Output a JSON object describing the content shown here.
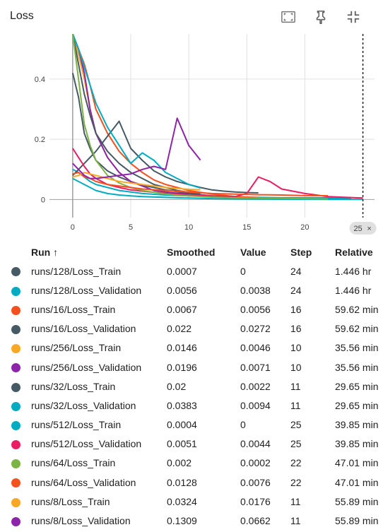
{
  "card": {
    "title": "Loss"
  },
  "toolbar": {
    "icons": [
      "fit-domain-icon",
      "pin-icon",
      "collapse-icon"
    ]
  },
  "chart_data": {
    "type": "line",
    "title": "Loss",
    "xlim": [
      -2,
      26
    ],
    "ylim": [
      -0.06,
      0.55
    ],
    "xticks": [
      0,
      5,
      10,
      15,
      20
    ],
    "yticks": [
      0,
      0.2,
      0.4
    ],
    "cursor_step": 25,
    "cursor_label": "25",
    "series": [
      {
        "name": "runs/128/Loss_Train",
        "color": "#455a64",
        "x": [
          0,
          0.5,
          1,
          1.5,
          2,
          3,
          4,
          5,
          6,
          8,
          10,
          12,
          14,
          16,
          18,
          20,
          22,
          24
        ],
        "y": [
          0.42,
          0.34,
          0.22,
          0.17,
          0.13,
          0.095,
          0.075,
          0.06,
          0.048,
          0.032,
          0.02,
          0.012,
          0.008,
          0.006,
          0.004,
          0.003,
          0.002,
          0.0007
        ]
      },
      {
        "name": "runs/128/Loss_Validation",
        "color": "#00acc1",
        "x": [
          0,
          0.5,
          1,
          1.5,
          2,
          3,
          4,
          5,
          6,
          8,
          10,
          12,
          14,
          16,
          18,
          20,
          22,
          24
        ],
        "y": [
          0.1,
          0.09,
          0.075,
          0.06,
          0.05,
          0.04,
          0.03,
          0.025,
          0.02,
          0.015,
          0.012,
          0.01,
          0.008,
          0.007,
          0.006,
          0.006,
          0.006,
          0.0056
        ]
      },
      {
        "name": "runs/16/Loss_Train",
        "color": "#f4511e",
        "x": [
          0,
          0.5,
          1,
          1.5,
          2,
          3,
          4,
          5,
          6,
          7,
          8,
          9,
          10,
          12,
          14,
          16
        ],
        "y": [
          0.55,
          0.5,
          0.45,
          0.38,
          0.3,
          0.22,
          0.16,
          0.12,
          0.09,
          0.065,
          0.05,
          0.04,
          0.03,
          0.018,
          0.01,
          0.0067
        ]
      },
      {
        "name": "runs/16/Loss_Validation",
        "color": "#455a64",
        "x": [
          0,
          1,
          2,
          3,
          4,
          5,
          6,
          7,
          8,
          9,
          10,
          11,
          12,
          13,
          14,
          15,
          16
        ],
        "y": [
          0.08,
          0.12,
          0.16,
          0.21,
          0.26,
          0.17,
          0.13,
          0.095,
          0.075,
          0.06,
          0.05,
          0.04,
          0.032,
          0.028,
          0.025,
          0.023,
          0.022
        ]
      },
      {
        "name": "runs/256/Loss_Train",
        "color": "#f9a825",
        "x": [
          0,
          0.5,
          1,
          1.5,
          2,
          3,
          4,
          5,
          6,
          7,
          8,
          9,
          10
        ],
        "y": [
          0.55,
          0.48,
          0.4,
          0.3,
          0.22,
          0.14,
          0.09,
          0.06,
          0.045,
          0.03,
          0.022,
          0.018,
          0.0146
        ]
      },
      {
        "name": "runs/256/Loss_Validation",
        "color": "#8e24aa",
        "x": [
          0,
          0.5,
          1,
          1.5,
          2,
          3,
          4,
          5,
          6,
          7,
          8,
          9,
          10
        ],
        "y": [
          0.55,
          0.5,
          0.42,
          0.3,
          0.22,
          0.14,
          0.09,
          0.06,
          0.045,
          0.03,
          0.025,
          0.021,
          0.0196
        ]
      },
      {
        "name": "runs/32/Loss_Train",
        "color": "#455a64",
        "x": [
          0,
          0.5,
          1,
          1.5,
          2,
          3,
          4,
          5,
          6,
          7,
          8,
          9,
          10,
          11
        ],
        "y": [
          0.55,
          0.45,
          0.35,
          0.28,
          0.22,
          0.16,
          0.12,
          0.09,
          0.07,
          0.05,
          0.04,
          0.03,
          0.024,
          0.02
        ]
      },
      {
        "name": "runs/32/Loss_Validation",
        "color": "#00acc1",
        "x": [
          0,
          0.5,
          1,
          1.5,
          2,
          3,
          4,
          5,
          6,
          7,
          8,
          9,
          10,
          11
        ],
        "y": [
          0.55,
          0.5,
          0.44,
          0.38,
          0.32,
          0.24,
          0.18,
          0.12,
          0.155,
          0.13,
          0.09,
          0.07,
          0.05,
          0.0383
        ]
      },
      {
        "name": "runs/512/Loss_Train",
        "color": "#00acc1",
        "x": [
          0,
          0.5,
          1,
          1.5,
          2,
          3,
          4,
          5,
          6,
          8,
          10,
          12,
          14,
          16,
          18,
          20,
          22,
          25
        ],
        "y": [
          0.07,
          0.06,
          0.05,
          0.04,
          0.03,
          0.02,
          0.015,
          0.012,
          0.01,
          0.007,
          0.005,
          0.003,
          0.002,
          0.0015,
          0.001,
          0.0008,
          0.0006,
          0.0004
        ]
      },
      {
        "name": "runs/512/Loss_Validation",
        "color": "#e91e63",
        "x": [
          0,
          0.5,
          1,
          1.5,
          2,
          3,
          4,
          5,
          6,
          8,
          10,
          12,
          14,
          15,
          16,
          17,
          18,
          20,
          22,
          25
        ],
        "y": [
          0.17,
          0.14,
          0.11,
          0.085,
          0.07,
          0.05,
          0.04,
          0.032,
          0.028,
          0.02,
          0.015,
          0.012,
          0.01,
          0.02,
          0.075,
          0.06,
          0.035,
          0.02,
          0.01,
          0.0051
        ]
      },
      {
        "name": "runs/64/Loss_Train",
        "color": "#7cb342",
        "x": [
          0,
          0.5,
          1,
          1.5,
          2,
          3,
          4,
          5,
          6,
          8,
          10,
          12,
          14,
          16,
          18,
          20,
          22
        ],
        "y": [
          0.55,
          0.4,
          0.25,
          0.18,
          0.13,
          0.08,
          0.055,
          0.04,
          0.03,
          0.018,
          0.012,
          0.008,
          0.006,
          0.005,
          0.004,
          0.003,
          0.002
        ]
      },
      {
        "name": "runs/64/Loss_Validation",
        "color": "#f4511e",
        "x": [
          0,
          0.5,
          1,
          1.5,
          2,
          3,
          4,
          5,
          6,
          8,
          10,
          12,
          14,
          16,
          18,
          20,
          22
        ],
        "y": [
          0.085,
          0.09,
          0.075,
          0.07,
          0.06,
          0.05,
          0.045,
          0.04,
          0.035,
          0.03,
          0.025,
          0.02,
          0.018,
          0.016,
          0.015,
          0.013,
          0.0128
        ]
      },
      {
        "name": "runs/8/Loss_Train",
        "color": "#f9a825",
        "x": [
          0,
          0.5,
          1,
          1.5,
          2,
          3,
          4,
          5,
          6,
          7,
          8,
          9,
          10,
          11
        ],
        "y": [
          0.075,
          0.08,
          0.09,
          0.085,
          0.08,
          0.07,
          0.06,
          0.055,
          0.05,
          0.045,
          0.04,
          0.037,
          0.034,
          0.0324
        ]
      },
      {
        "name": "runs/8/Loss_Validation",
        "color": "#8e24aa",
        "x": [
          0,
          0.5,
          1,
          1.5,
          2,
          3,
          4,
          5,
          6,
          7,
          8,
          9,
          10,
          11
        ],
        "y": [
          0.12,
          0.1,
          0.08,
          0.07,
          0.07,
          0.075,
          0.08,
          0.085,
          0.1,
          0.11,
          0.1,
          0.27,
          0.18,
          0.1309
        ]
      }
    ]
  },
  "table": {
    "headers": {
      "run": "Run ↑",
      "smoothed": "Smoothed",
      "value": "Value",
      "step": "Step",
      "relative": "Relative"
    },
    "rows": [
      {
        "color": "#455a64",
        "run": "runs/128/Loss_Train",
        "smoothed": "0.0007",
        "value": "0",
        "step": "24",
        "relative": "1.446 hr"
      },
      {
        "color": "#00acc1",
        "run": "runs/128/Loss_Validation",
        "smoothed": "0.0056",
        "value": "0.0038",
        "step": "24",
        "relative": "1.446 hr"
      },
      {
        "color": "#f4511e",
        "run": "runs/16/Loss_Train",
        "smoothed": "0.0067",
        "value": "0.0056",
        "step": "16",
        "relative": "59.62 min"
      },
      {
        "color": "#455a64",
        "run": "runs/16/Loss_Validation",
        "smoothed": "0.022",
        "value": "0.0272",
        "step": "16",
        "relative": "59.62 min"
      },
      {
        "color": "#f9a825",
        "run": "runs/256/Loss_Train",
        "smoothed": "0.0146",
        "value": "0.0046",
        "step": "10",
        "relative": "35.56 min"
      },
      {
        "color": "#8e24aa",
        "run": "runs/256/Loss_Validation",
        "smoothed": "0.0196",
        "value": "0.0071",
        "step": "10",
        "relative": "35.56 min"
      },
      {
        "color": "#455a64",
        "run": "runs/32/Loss_Train",
        "smoothed": "0.02",
        "value": "0.0022",
        "step": "11",
        "relative": "29.65 min"
      },
      {
        "color": "#00acc1",
        "run": "runs/32/Loss_Validation",
        "smoothed": "0.0383",
        "value": "0.0094",
        "step": "11",
        "relative": "29.65 min"
      },
      {
        "color": "#00acc1",
        "run": "runs/512/Loss_Train",
        "smoothed": "0.0004",
        "value": "0",
        "step": "25",
        "relative": "39.85 min"
      },
      {
        "color": "#e91e63",
        "run": "runs/512/Loss_Validation",
        "smoothed": "0.0051",
        "value": "0.0044",
        "step": "25",
        "relative": "39.85 min"
      },
      {
        "color": "#7cb342",
        "run": "runs/64/Loss_Train",
        "smoothed": "0.002",
        "value": "0.0002",
        "step": "22",
        "relative": "47.01 min"
      },
      {
        "color": "#f4511e",
        "run": "runs/64/Loss_Validation",
        "smoothed": "0.0128",
        "value": "0.0076",
        "step": "22",
        "relative": "47.01 min"
      },
      {
        "color": "#f9a825",
        "run": "runs/8/Loss_Train",
        "smoothed": "0.0324",
        "value": "0.0176",
        "step": "11",
        "relative": "55.89 min"
      },
      {
        "color": "#8e24aa",
        "run": "runs/8/Loss_Validation",
        "smoothed": "0.1309",
        "value": "0.0662",
        "step": "11",
        "relative": "55.89 min"
      }
    ]
  }
}
